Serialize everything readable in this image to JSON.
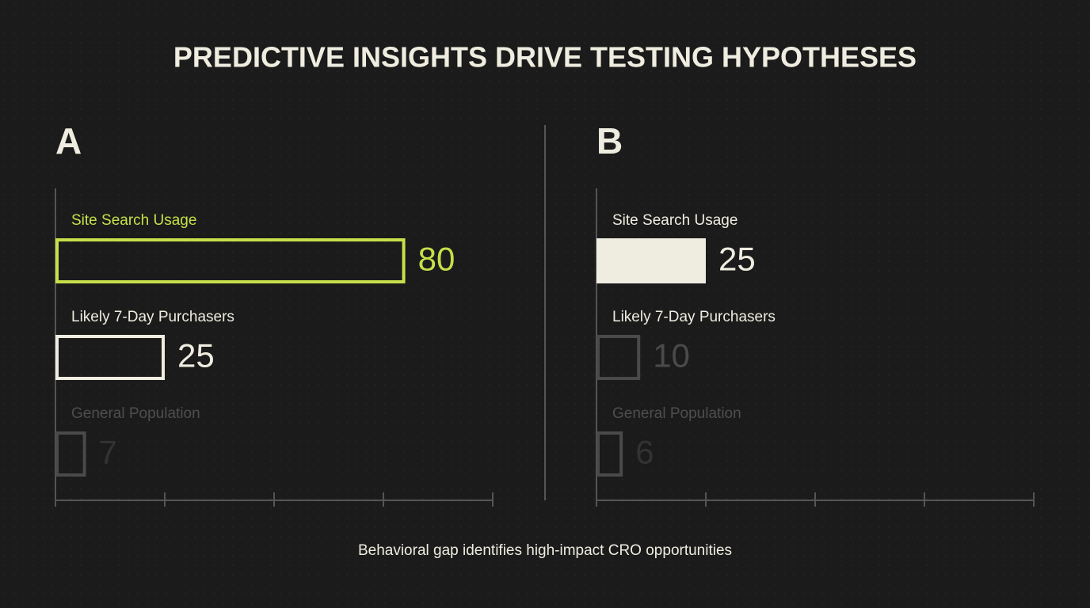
{
  "title": "PREDICTIVE INSIGHTS DRIVE TESTING HYPOTHESES",
  "footnote": "Behavioral gap identifies high-impact CRO opportunities",
  "chart_data": [
    {
      "type": "bar",
      "orientation": "horizontal",
      "panel_label": "A",
      "categories": [
        "Site Search Usage",
        "Likely 7-Day Purchasers",
        "General Population"
      ],
      "values": [
        80,
        25,
        7
      ],
      "colors": [
        "#c5e04a",
        "#efece0",
        "#4a4a4a"
      ],
      "label_colors": [
        "#c5e04a",
        "#efece0",
        "#4e4e4e"
      ],
      "filled": [
        false,
        false,
        false
      ],
      "xlim": [
        0,
        100
      ],
      "xticks": [
        0,
        25,
        50,
        75,
        100
      ]
    },
    {
      "type": "bar",
      "orientation": "horizontal",
      "panel_label": "B",
      "categories": [
        "Site Search Usage",
        "Likely 7-Day Purchasers",
        "General Population"
      ],
      "values": [
        25,
        10,
        6
      ],
      "colors": [
        "#efece0",
        "#4a4a4a",
        "#4a4a4a"
      ],
      "label_colors": [
        "#efece0",
        "#efece0",
        "#4e4e4e"
      ],
      "filled": [
        true,
        false,
        false
      ],
      "xlim": [
        0,
        100
      ],
      "xticks": [
        0,
        25,
        50,
        75,
        100
      ]
    }
  ]
}
